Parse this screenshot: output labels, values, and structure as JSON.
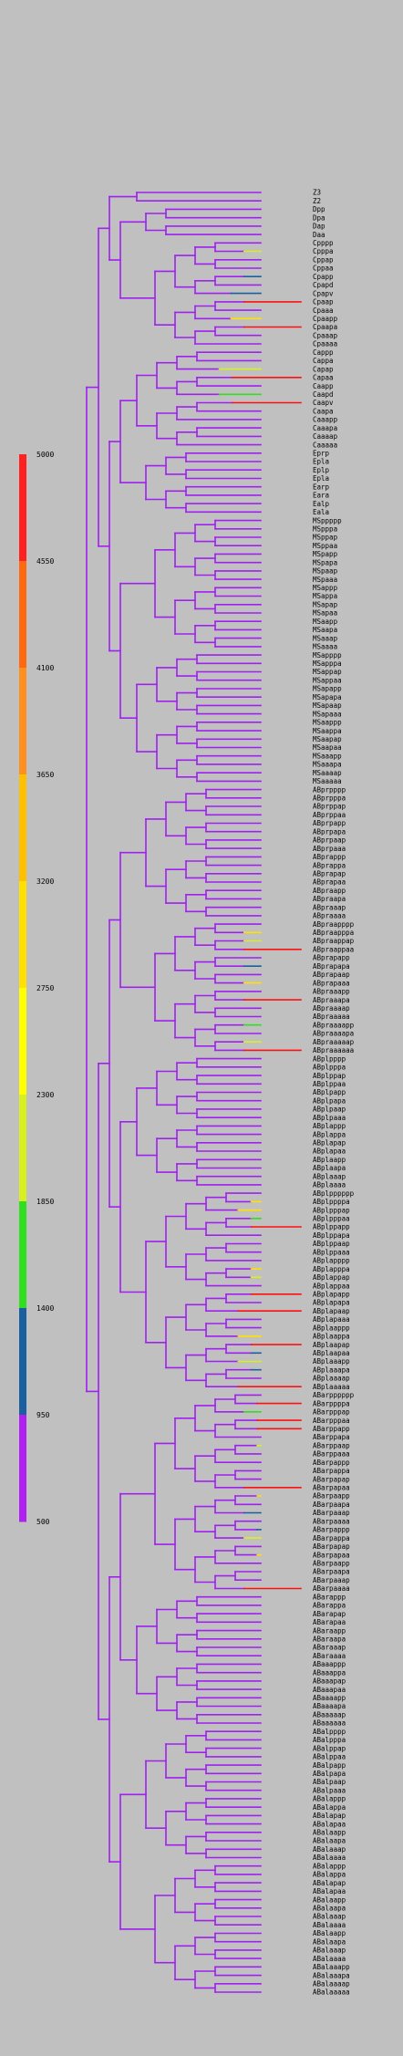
{
  "diagram": {
    "type": "cell-lineage-tree",
    "palette": {
      "background": "#c0c0c0",
      "branch_default": "#a020f0",
      "label_color": "#000000"
    }
  },
  "color_scale": {
    "bins": [
      {
        "from": 500,
        "to": 950,
        "color": "#b020f0"
      },
      {
        "from": 950,
        "to": 1400,
        "color": "#1a60a0"
      },
      {
        "from": 1400,
        "to": 1850,
        "color": "#30e020"
      },
      {
        "from": 1850,
        "to": 2300,
        "color": "#d8f020"
      },
      {
        "from": 2300,
        "to": 2750,
        "color": "#ffff00"
      },
      {
        "from": 2750,
        "to": 3200,
        "color": "#ffe000"
      },
      {
        "from": 3200,
        "to": 3650,
        "color": "#ffc000"
      },
      {
        "from": 3650,
        "to": 4100,
        "color": "#ff9020"
      },
      {
        "from": 4100,
        "to": 4550,
        "color": "#ff6a10"
      },
      {
        "from": 4550,
        "to": 5000,
        "color": "#ff2020"
      }
    ],
    "tick_labels": [
      "500",
      "950",
      "1400",
      "1850",
      "2300",
      "2750",
      "3200",
      "3650",
      "4100",
      "4550",
      "5000"
    ]
  },
  "groups": [
    {
      "prefix": "Z",
      "labels": [
        "Z3",
        "Z2"
      ]
    },
    {
      "prefix": "D",
      "labels": [
        "Dpp",
        "Dpa",
        "Dap",
        "Daa"
      ]
    },
    {
      "prefix": "Cp",
      "labels": [
        "Cpppp",
        "Cpppa",
        "Cppap",
        "Cppaa",
        "Cpapp",
        "Cpapd",
        "Cpapv",
        "Cpaap",
        "Cpaaa",
        "Cpaapp",
        "Cpaapa",
        "Cpaaap",
        "Cpaaaa"
      ]
    },
    {
      "prefix": "Ca",
      "labels": [
        "Cappp",
        "Cappa",
        "Capap",
        "Capaa",
        "Caapp",
        "Caapd",
        "Caapv",
        "Caapa",
        "Caaapp",
        "Caaapa",
        "Caaaap",
        "Caaaaa"
      ]
    },
    {
      "prefix": "E",
      "labels": [
        "Eprp",
        "Epla",
        "Eplp",
        "Epla",
        "Earp",
        "Eara",
        "Ealp",
        "Eala"
      ]
    },
    {
      "prefix": "MSp",
      "labels": [
        "MSppppp",
        "MSpppa",
        "MSppap",
        "MSppaa",
        "MSpapp",
        "MSpapa",
        "MSpaap",
        "MSpaaa",
        "MSappp",
        "MSappa",
        "MSapap",
        "MSapaa",
        "MSaapp",
        "MSaapa",
        "MSaaap",
        "MSaaaa"
      ]
    },
    {
      "prefix": "MSa",
      "labels": [
        "MSapppp",
        "MSapppa",
        "MSappap",
        "MSappaa",
        "MSapapp",
        "MSapapa",
        "MSapaap",
        "MSapaaa",
        "MSaappp",
        "MSaappa",
        "MSaapap",
        "MSaapaa",
        "MSaaapp",
        "MSaaapa",
        "MSaaaap",
        "MSaaaaa"
      ]
    },
    {
      "prefix": "ABprp",
      "labels": [
        "ABprpppp",
        "ABprpppa",
        "ABprppap",
        "ABprppaa",
        "ABprpapp",
        "ABprpapa",
        "ABprpaap",
        "ABprpaaa",
        "ABprappp",
        "ABprappa",
        "ABprapap",
        "ABprapaa",
        "ABpraapp",
        "ABpraapa",
        "ABpraaap",
        "ABpraaaa"
      ]
    },
    {
      "prefix": "ABpra",
      "labels": [
        "ABpraapppp",
        "ABpraapppa",
        "ABpraappap",
        "ABpraappaa",
        "ABprapapp",
        "ABprapapa",
        "ABprapaap",
        "ABprapaaa",
        "ABpraaapp",
        "ABpraaapa",
        "ABpraaaap",
        "ABpraaaaa",
        "ABpraaaapp",
        "ABpraaaapa",
        "ABpraaaaap",
        "ABpraaaaaa"
      ]
    },
    {
      "prefix": "ABplp",
      "labels": [
        "ABplpppp",
        "ABplpppa",
        "ABplppap",
        "ABplppaa",
        "ABplpapp",
        "ABplpapa",
        "ABplpaap",
        "ABplpaaa",
        "ABplappp",
        "ABplappa",
        "ABplapap",
        "ABplapaa",
        "ABplaapp",
        "ABplaapa",
        "ABplaaap",
        "ABplaaaa"
      ]
    },
    {
      "prefix": "ABpla",
      "labels": [
        "ABplpppppp",
        "ABplppppa",
        "ABplpppap",
        "ABplpppaa",
        "ABplppapp",
        "ABplppapa",
        "ABplppaap",
        "ABplppaaa",
        "ABplapppp",
        "ABplapppa",
        "ABplappap",
        "ABplappaa",
        "ABplapapp",
        "ABplapapa",
        "ABplapaap",
        "ABplapaaa",
        "ABplaappp",
        "ABplaappa",
        "ABplaapap",
        "ABplaapaa",
        "ABplaaapp",
        "ABplaaapa",
        "ABplaaaap",
        "ABplaaaaa"
      ]
    },
    {
      "prefix": "ABarp",
      "labels": [
        "ABarpppppp",
        "ABarppppa",
        "ABarpppap",
        "ABarpppaa",
        "ABarppapp",
        "ABarppapa",
        "ABarppaap",
        "ABarppaaa",
        "ABarpappp",
        "ABarpappa",
        "ABarpapap",
        "ABarpapaa",
        "ABarpaapp",
        "ABarpaapa",
        "ABarpaaap",
        "ABarpaaaa",
        "ABarpappp",
        "ABarpappa",
        "ABarpapap",
        "ABarpapaa",
        "ABarpaapp",
        "ABarpaapa",
        "ABarpaaap",
        "ABarpaaaa"
      ]
    },
    {
      "prefix": "ABara",
      "labels": [
        "ABarappp",
        "ABarappa",
        "ABarapap",
        "ABarapaa",
        "ABaraapp",
        "ABaraapa",
        "ABaraaap",
        "ABaraaaa",
        "ABaaappp",
        "ABaaappa",
        "ABaaapap",
        "ABaaapaa",
        "ABaaaapp",
        "ABaaaapa",
        "ABaaaaap",
        "ABaaaaaa"
      ]
    },
    {
      "prefix": "ABalp",
      "labels": [
        "ABalpppp",
        "ABalpppa",
        "ABalppap",
        "ABalppaa",
        "ABalpapp",
        "ABalpapa",
        "ABalpaap",
        "ABalpaaa",
        "ABalappp",
        "ABalappa",
        "ABalapap",
        "ABalapaa",
        "ABalaapp",
        "ABalaapa",
        "ABalaaap",
        "ABalaaaa"
      ]
    },
    {
      "prefix": "ABala",
      "labels": [
        "ABalappp",
        "ABalappa",
        "ABalapap",
        "ABalapaa",
        "ABalaapp",
        "ABalaapa",
        "ABalaaap",
        "ABalaaaa",
        "ABalaapp",
        "ABalaapa",
        "ABalaaap",
        "ABalaaaa",
        "ABalaaapp",
        "ABalaaapa",
        "ABalaaaap",
        "ABalaaaaa"
      ]
    }
  ]
}
